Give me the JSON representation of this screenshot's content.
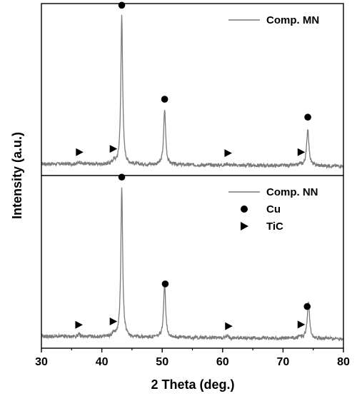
{
  "chart_data": {
    "type": "line",
    "xlabel": "2 Theta (deg.)",
    "ylabel": "Intensity (a.u.)",
    "xlim": [
      30,
      80
    ],
    "xticks": [
      30,
      40,
      50,
      60,
      70,
      80
    ],
    "grid": false,
    "colors": {
      "trace": "#7a7a7a",
      "marker": "#000000",
      "frame": "#000000"
    },
    "panels": [
      {
        "name": "top",
        "legend_position": "top-right",
        "legend": [
          {
            "label": "Comp. MN",
            "symbol": "line"
          }
        ],
        "baseline": 5,
        "peaks": [
          {
            "x": 43.3,
            "height": 100,
            "width": 0.18,
            "phase": "Cu"
          },
          {
            "x": 50.4,
            "height": 37,
            "width": 0.2,
            "phase": "Cu"
          },
          {
            "x": 74.1,
            "height": 25,
            "width": 0.22,
            "phase": "Cu"
          },
          {
            "x": 36.3,
            "height": 1.5,
            "width": 0.25,
            "phase": "TiC"
          },
          {
            "x": 42.0,
            "height": 2.5,
            "width": 0.25,
            "phase": "TiC"
          },
          {
            "x": 60.8,
            "height": 1.0,
            "width": 0.25,
            "phase": "TiC"
          },
          {
            "x": 72.8,
            "height": 1.0,
            "width": 0.25,
            "phase": "TiC"
          }
        ],
        "markers": [
          {
            "x": 43.3,
            "symbol": "circle",
            "phase": "Cu"
          },
          {
            "x": 50.4,
            "symbol": "circle",
            "phase": "Cu"
          },
          {
            "x": 74.1,
            "symbol": "circle",
            "phase": "Cu"
          },
          {
            "x": 36.3,
            "symbol": "triangle",
            "phase": "TiC"
          },
          {
            "x": 41.9,
            "symbol": "triangle",
            "phase": "TiC"
          },
          {
            "x": 60.9,
            "symbol": "triangle",
            "phase": "TiC"
          },
          {
            "x": 73.0,
            "symbol": "triangle",
            "phase": "TiC"
          }
        ]
      },
      {
        "name": "bottom",
        "legend_position": "top-right",
        "legend": [
          {
            "label": "Comp. NN",
            "symbol": "line"
          },
          {
            "label": "Cu",
            "symbol": "circle"
          },
          {
            "label": "TiC",
            "symbol": "triangle"
          }
        ],
        "baseline": 5,
        "peaks": [
          {
            "x": 43.3,
            "height": 100,
            "width": 0.18,
            "phase": "Cu"
          },
          {
            "x": 50.4,
            "height": 36,
            "width": 0.2,
            "phase": "Cu"
          },
          {
            "x": 74.2,
            "height": 25,
            "width": 0.22,
            "phase": "Cu"
          },
          {
            "x": 36.2,
            "height": 1.5,
            "width": 0.25,
            "phase": "TiC"
          },
          {
            "x": 42.0,
            "height": 2.5,
            "width": 0.25,
            "phase": "TiC"
          },
          {
            "x": 60.8,
            "height": 1.0,
            "width": 0.25,
            "phase": "TiC"
          },
          {
            "x": 72.8,
            "height": 1.5,
            "width": 0.25,
            "phase": "TiC"
          }
        ],
        "markers": [
          {
            "x": 43.3,
            "symbol": "circle",
            "phase": "Cu"
          },
          {
            "x": 50.5,
            "symbol": "circle",
            "phase": "Cu"
          },
          {
            "x": 74.0,
            "symbol": "circle",
            "phase": "Cu"
          },
          {
            "x": 36.2,
            "symbol": "triangle",
            "phase": "TiC"
          },
          {
            "x": 41.9,
            "symbol": "triangle",
            "phase": "TiC"
          },
          {
            "x": 61.0,
            "symbol": "triangle",
            "phase": "TiC"
          },
          {
            "x": 73.0,
            "symbol": "triangle",
            "phase": "TiC"
          }
        ]
      }
    ]
  }
}
